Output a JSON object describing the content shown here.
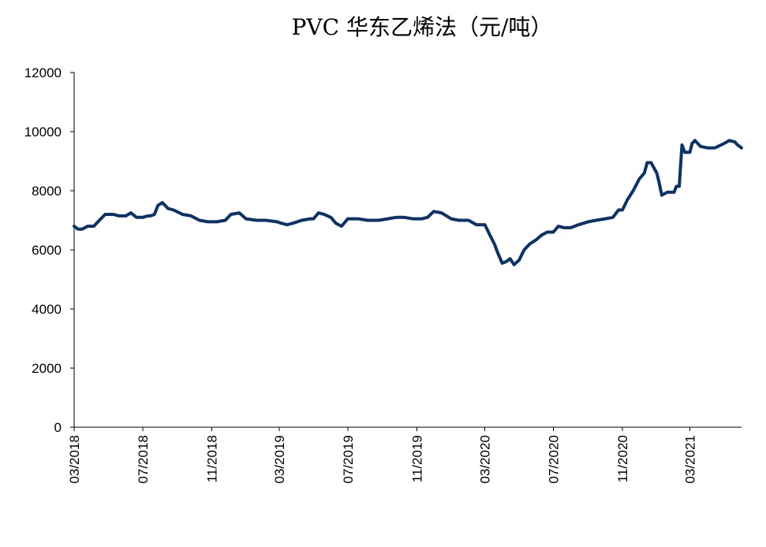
{
  "chart_data": {
    "type": "line",
    "title": "PVC 华东乙烯法（元/吨）",
    "xlabel": "",
    "ylabel": "",
    "ylim": [
      0,
      12000
    ],
    "yticks": [
      "0",
      "2000",
      "4000",
      "6000",
      "8000",
      "10000",
      "12000"
    ],
    "xlim": [
      "2018-03",
      "2021-06"
    ],
    "xticks": [
      {
        "date": "2018-03",
        "label": "03/2018"
      },
      {
        "date": "2018-07",
        "label": "07/2018"
      },
      {
        "date": "2018-11",
        "label": "11/2018"
      },
      {
        "date": "2019-03",
        "label": "03/2019"
      },
      {
        "date": "2019-07",
        "label": "07/2019"
      },
      {
        "date": "2019-11",
        "label": "11/2019"
      },
      {
        "date": "2020-03",
        "label": "03/2020"
      },
      {
        "date": "2020-07",
        "label": "07/2020"
      },
      {
        "date": "2020-11",
        "label": "11/2020"
      },
      {
        "date": "2021-03",
        "label": "03/2021"
      }
    ],
    "grid": false,
    "legend": "none",
    "colors": {
      "line": "#0b3367",
      "axis": "#000000"
    },
    "series": [
      {
        "x": [
          "2018-03-01",
          "2018-03-08",
          "2018-03-15",
          "2018-03-25",
          "2018-04-05",
          "2018-04-15",
          "2018-04-25",
          "2018-05-10",
          "2018-05-20",
          "2018-06-01",
          "2018-06-10",
          "2018-06-20",
          "2018-07-01",
          "2018-07-10",
          "2018-07-15",
          "2018-07-22",
          "2018-07-28",
          "2018-08-05",
          "2018-08-15",
          "2018-08-25",
          "2018-09-10",
          "2018-09-25",
          "2018-10-10",
          "2018-10-25",
          "2018-11-10",
          "2018-11-25",
          "2018-12-05",
          "2018-12-20",
          "2019-01-01",
          "2019-01-20",
          "2019-02-05",
          "2019-02-25",
          "2019-03-05",
          "2019-03-15",
          "2019-03-25",
          "2019-04-10",
          "2019-04-25",
          "2019-05-01",
          "2019-05-10",
          "2019-05-20",
          "2019-06-01",
          "2019-06-10",
          "2019-06-20",
          "2019-07-01",
          "2019-07-20",
          "2019-08-05",
          "2019-08-25",
          "2019-09-10",
          "2019-09-25",
          "2019-10-10",
          "2019-10-25",
          "2019-11-10",
          "2019-11-20",
          "2019-12-01",
          "2019-12-15",
          "2020-01-01",
          "2020-01-15",
          "2020-02-01",
          "2020-02-15",
          "2020-03-01",
          "2020-03-10",
          "2020-03-18",
          "2020-03-25",
          "2020-04-01",
          "2020-04-08",
          "2020-04-15",
          "2020-04-22",
          "2020-05-01",
          "2020-05-10",
          "2020-05-20",
          "2020-06-01",
          "2020-06-10",
          "2020-06-20",
          "2020-07-01",
          "2020-07-10",
          "2020-07-20",
          "2020-08-01",
          "2020-08-15",
          "2020-09-01",
          "2020-09-15",
          "2020-10-01",
          "2020-10-15",
          "2020-10-25",
          "2020-11-01",
          "2020-11-10",
          "2020-11-20",
          "2020-12-01",
          "2020-12-10",
          "2020-12-15",
          "2020-12-22",
          "2021-01-01",
          "2021-01-05",
          "2021-01-10",
          "2021-01-20",
          "2021-02-01",
          "2021-02-05",
          "2021-02-10",
          "2021-02-15",
          "2021-02-20",
          "2021-03-01",
          "2021-03-05",
          "2021-03-10",
          "2021-03-20",
          "2021-04-01",
          "2021-04-15",
          "2021-05-01",
          "2021-05-10",
          "2021-05-20",
          "2021-05-25",
          "2021-06-01"
        ],
        "values": [
          6800,
          6700,
          6700,
          6800,
          6800,
          7000,
          7200,
          7200,
          7150,
          7150,
          7250,
          7100,
          7100,
          7150,
          7150,
          7200,
          7500,
          7600,
          7400,
          7350,
          7200,
          7150,
          7000,
          6950,
          6950,
          7000,
          7200,
          7250,
          7050,
          7000,
          7000,
          6950,
          6900,
          6850,
          6900,
          7000,
          7050,
          7050,
          7250,
          7200,
          7100,
          6900,
          6800,
          7050,
          7050,
          7000,
          7000,
          7050,
          7100,
          7100,
          7050,
          7050,
          7100,
          7300,
          7250,
          7050,
          7000,
          7000,
          6850,
          6850,
          6500,
          6200,
          5850,
          5550,
          5600,
          5700,
          5500,
          5650,
          6000,
          6200,
          6350,
          6500,
          6600,
          6600,
          6800,
          6750,
          6750,
          6850,
          6950,
          7000,
          7050,
          7100,
          7350,
          7350,
          7700,
          8000,
          8400,
          8600,
          8950,
          8950,
          8600,
          8300,
          7850,
          7950,
          7950,
          8150,
          8150,
          9550,
          9300,
          9300,
          9600,
          9700,
          9500,
          9450,
          9450,
          9600,
          9700,
          9650,
          9550,
          9450
        ]
      }
    ]
  }
}
